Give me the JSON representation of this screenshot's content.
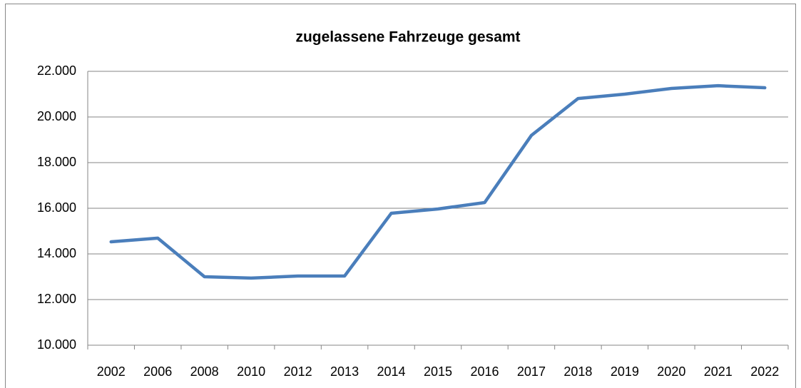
{
  "chart_data": {
    "type": "line",
    "title": "zugelassene Fahrzeuge gesamt",
    "categories": [
      "2002",
      "2006",
      "2008",
      "2010",
      "2012",
      "2013",
      "2014",
      "2015",
      "2016",
      "2017",
      "2018",
      "2019",
      "2020",
      "2021",
      "2022"
    ],
    "series": [
      {
        "name": "zugelassene Fahrzeuge gesamt",
        "color": "#4a7ebb",
        "values": [
          14530,
          14690,
          13000,
          12940,
          13030,
          13030,
          15780,
          15970,
          16250,
          19190,
          20810,
          21000,
          21250,
          21370,
          21280
        ]
      }
    ],
    "ylim": [
      10000,
      22000
    ],
    "yticks": [
      {
        "value": 10000,
        "label": "10.000"
      },
      {
        "value": 12000,
        "label": "12.000"
      },
      {
        "value": 14000,
        "label": "14.000"
      },
      {
        "value": 16000,
        "label": "16.000"
      },
      {
        "value": 18000,
        "label": "18.000"
      },
      {
        "value": 20000,
        "label": "20.000"
      },
      {
        "value": 22000,
        "label": "22.000"
      }
    ],
    "grid": true,
    "legend": false
  }
}
